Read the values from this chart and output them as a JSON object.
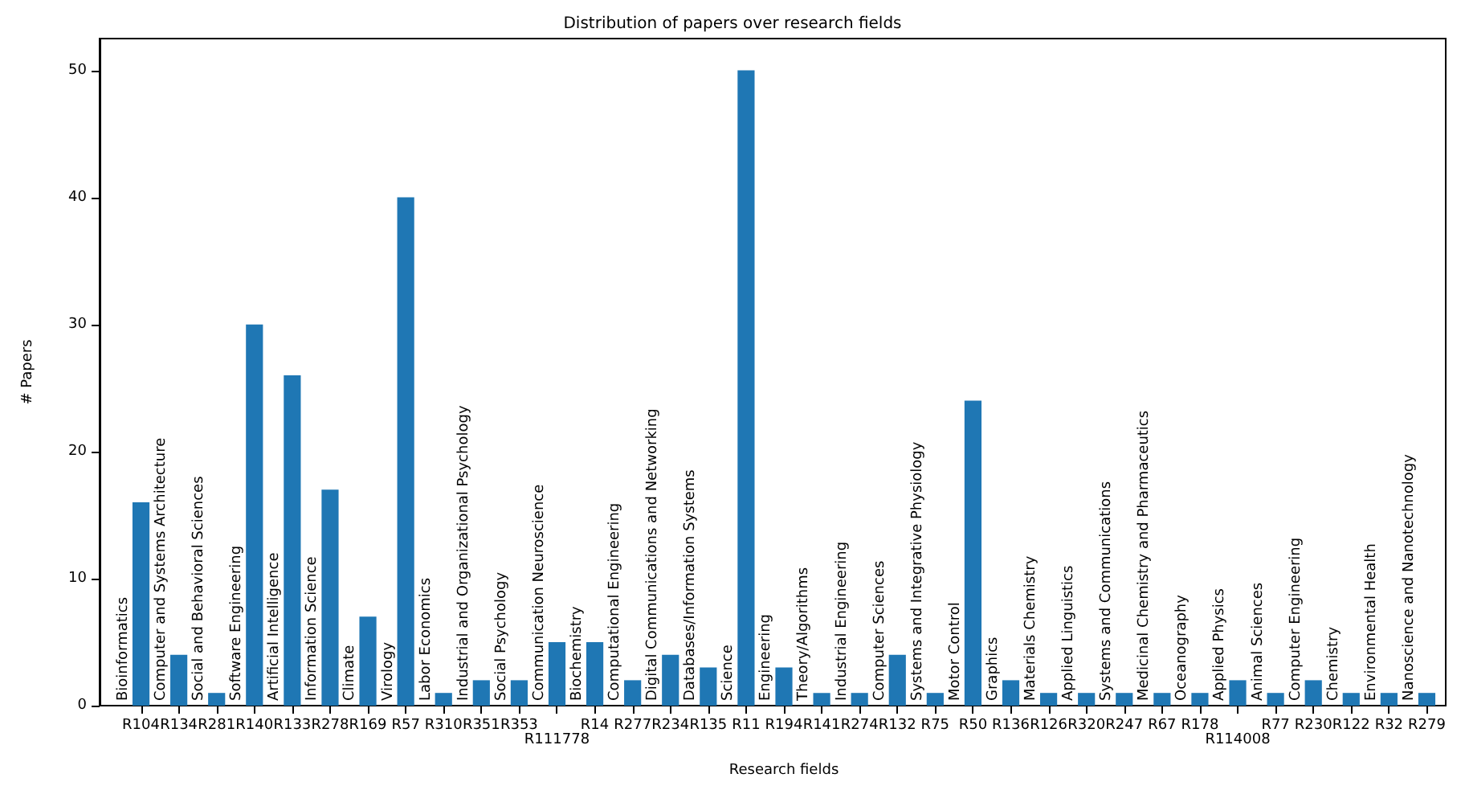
{
  "chart_data": {
    "type": "bar",
    "title": "Distribution of papers over research fields",
    "xlabel": "Research fields",
    "ylabel": "# Papers",
    "categories": [
      "R104",
      "R134",
      "R281",
      "R140",
      "R133",
      "R278",
      "R169",
      "R57",
      "R310",
      "R351",
      "R353",
      "R111778",
      "R14",
      "R277",
      "R234",
      "R135",
      "R11",
      "R194",
      "R141",
      "R274",
      "R132",
      "R75",
      "R50",
      "R136",
      "R126",
      "R320",
      "R247",
      "R67",
      "R178",
      "R114008",
      "R77",
      "R230",
      "R122",
      "R32",
      "R279"
    ],
    "values": [
      16,
      4,
      1,
      30,
      26,
      17,
      7,
      40,
      1,
      2,
      2,
      5,
      5,
      2,
      4,
      3,
      50,
      3,
      1,
      1,
      4,
      1,
      24,
      2,
      1,
      1,
      1,
      1,
      1,
      2,
      1,
      2,
      1,
      1,
      1
    ],
    "color": "#1f77b4",
    "ylim": [
      0,
      52.5
    ],
    "yticks": [
      0,
      10,
      20,
      30,
      40,
      50
    ],
    "grid": false,
    "annotations": [
      "Bioinformatics",
      "Computer and Systems Architecture",
      "Social and Behavioral Sciences",
      "Software Engineering",
      "Artificial Intelligence",
      "Information Science",
      "Climate",
      "Virology",
      "Labor Economics",
      "Industrial and Organizational Psychology",
      "Social Psychology",
      "Communication Neuroscience",
      "Biochemistry",
      "Computational Engineering",
      "Digital Communications and Networking",
      "Databases/Information Systems",
      "Science",
      "Engineering",
      "Theory/Algorithms",
      "Industrial Engineering",
      "Computer Sciences",
      "Systems and Integrative Physiology",
      "Motor Control",
      "Graphics",
      "Materials Chemistry",
      "Applied Linguistics",
      "Systems and Communications",
      "Medicinal Chemistry and Pharmaceutics",
      "Oceanography",
      "Applied Physics",
      "Animal Sciences",
      "Computer Engineering",
      "Chemistry",
      "Environmental Health",
      "Nanoscience and Nanotechnology"
    ]
  }
}
